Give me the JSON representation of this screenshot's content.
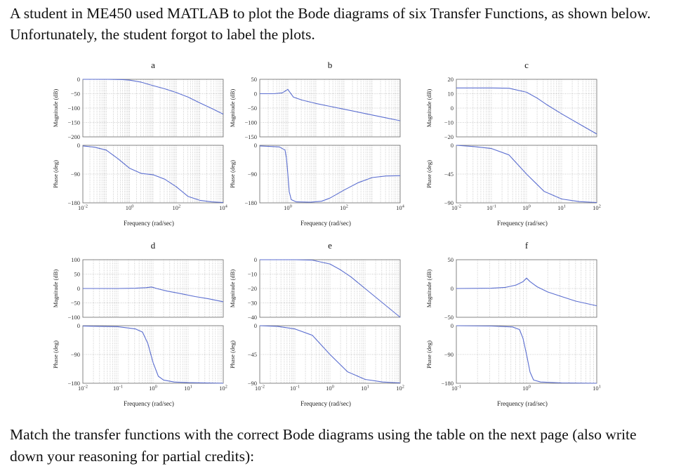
{
  "problem": {
    "intro": "A student in ME450 used MATLAB to plot the Bode diagrams of six Transfer Functions, as shown below. Unfortunately, the student forgot to label the plots.",
    "outro": "Match the transfer functions with the correct Bode diagrams using the table on the next page (also write down your reasoning for partial credits):"
  },
  "style": {
    "curve_color": "#5b6ed0",
    "grid_color": "#9a9a9a",
    "frame_color": "#666666"
  },
  "chart_data": [
    {
      "type": "line",
      "title": "a",
      "xlabel": "Frequency  (rad/sec)",
      "xticks": [
        "10^-2",
        "10^0",
        "10^2",
        "10^4"
      ],
      "xlim_log10": [
        -2,
        4
      ],
      "magnitude": {
        "ylabel": "Magnitude (dB)",
        "ylim": [
          -200,
          0
        ],
        "yticks": [
          0,
          -50,
          -100,
          -150,
          -200
        ],
        "points": [
          [
            -2,
            0
          ],
          [
            -1,
            0
          ],
          [
            -0.3,
            -1
          ],
          [
            0,
            -3
          ],
          [
            0.5,
            -10
          ],
          [
            1,
            -22
          ],
          [
            1.5,
            -33
          ],
          [
            2,
            -46
          ],
          [
            2.5,
            -62
          ],
          [
            3,
            -82
          ],
          [
            3.5,
            -101
          ],
          [
            4,
            -121
          ]
        ]
      },
      "phase": {
        "ylabel": "Phase (deg)",
        "ylim": [
          -180,
          0
        ],
        "yticks": [
          0,
          -90,
          -180
        ],
        "points": [
          [
            -2,
            -2
          ],
          [
            -1.5,
            -6
          ],
          [
            -1,
            -15
          ],
          [
            -0.5,
            -42
          ],
          [
            -0.2,
            -60
          ],
          [
            0,
            -72
          ],
          [
            0.5,
            -88
          ],
          [
            1,
            -92
          ],
          [
            1.5,
            -106
          ],
          [
            2,
            -130
          ],
          [
            2.5,
            -160
          ],
          [
            3,
            -172
          ],
          [
            3.5,
            -177
          ],
          [
            4,
            -179
          ]
        ]
      }
    },
    {
      "type": "line",
      "title": "b",
      "xlabel": "Frequency  (rad/sec)",
      "xticks": [
        "10^0",
        "10^2",
        "10^4"
      ],
      "xlim_log10": [
        -1,
        4
      ],
      "magnitude": {
        "ylabel": "Magnitude (dB)",
        "ylim": [
          -150,
          50
        ],
        "yticks": [
          50,
          0,
          -50,
          -100,
          -150
        ],
        "points": [
          [
            -1,
            0
          ],
          [
            -0.5,
            0
          ],
          [
            -0.2,
            3
          ],
          [
            -0.05,
            12
          ],
          [
            0,
            15
          ],
          [
            0.05,
            8
          ],
          [
            0.2,
            -12
          ],
          [
            0.5,
            -22
          ],
          [
            1,
            -34
          ],
          [
            1.5,
            -44
          ],
          [
            2,
            -54
          ],
          [
            2.5,
            -64
          ],
          [
            3,
            -74
          ],
          [
            3.5,
            -84
          ],
          [
            4,
            -94
          ]
        ]
      },
      "phase": {
        "ylabel": "Phase (deg)",
        "ylim": [
          -180,
          0
        ],
        "yticks": [
          0,
          -90,
          -180
        ],
        "points": [
          [
            -1,
            -2
          ],
          [
            -0.3,
            -5
          ],
          [
            -0.1,
            -15
          ],
          [
            -0.05,
            -40
          ],
          [
            0,
            -90
          ],
          [
            0.05,
            -145
          ],
          [
            0.12,
            -170
          ],
          [
            0.3,
            -177
          ],
          [
            0.8,
            -178
          ],
          [
            1.2,
            -175
          ],
          [
            1.5,
            -165
          ],
          [
            2,
            -140
          ],
          [
            2.5,
            -117
          ],
          [
            3,
            -101
          ],
          [
            3.5,
            -96
          ],
          [
            4,
            -95
          ]
        ]
      }
    },
    {
      "type": "line",
      "title": "c",
      "xlabel": "Frequency  (rad/sec)",
      "xticks": [
        "10^-2",
        "10^-1",
        "10^0",
        "10^1",
        "10^2"
      ],
      "xlim_log10": [
        -2,
        2
      ],
      "magnitude": {
        "ylabel": "Magnitude (dB)",
        "ylim": [
          -20,
          20
        ],
        "yticks": [
          20,
          10,
          0,
          -10,
          -20
        ],
        "points": [
          [
            -2,
            14
          ],
          [
            -1,
            14
          ],
          [
            -0.5,
            13.8
          ],
          [
            0,
            11
          ],
          [
            0.3,
            7
          ],
          [
            0.6,
            2
          ],
          [
            1,
            -4
          ],
          [
            1.5,
            -11
          ],
          [
            2,
            -18
          ]
        ]
      },
      "phase": {
        "ylabel": "Phase (deg)",
        "ylim": [
          -90,
          0
        ],
        "yticks": [
          0,
          -45,
          -90
        ],
        "points": [
          [
            -2,
            0
          ],
          [
            -1.5,
            -2
          ],
          [
            -1,
            -5
          ],
          [
            -0.5,
            -15
          ],
          [
            0,
            -45
          ],
          [
            0.5,
            -72
          ],
          [
            1,
            -84
          ],
          [
            1.5,
            -88
          ],
          [
            2,
            -89.5
          ]
        ]
      }
    },
    {
      "type": "line",
      "title": "d",
      "xlabel": "Frequency  (rad/sec)",
      "xticks": [
        "10^-2",
        "10^-1",
        "10^0",
        "10^1",
        "10^2"
      ],
      "xlim_log10": [
        -2,
        2
      ],
      "magnitude": {
        "ylabel": "Magnitude (dB)",
        "ylim": [
          -100,
          100
        ],
        "yticks": [
          100,
          50,
          0,
          -50,
          -100
        ],
        "points": [
          [
            -2,
            0
          ],
          [
            -1,
            0
          ],
          [
            -0.5,
            1
          ],
          [
            -0.2,
            3
          ],
          [
            -0.05,
            5
          ],
          [
            0,
            4
          ],
          [
            0.1,
            0
          ],
          [
            0.4,
            -9
          ],
          [
            0.8,
            -18
          ],
          [
            1.2,
            -28
          ],
          [
            1.6,
            -36
          ],
          [
            2,
            -46
          ]
        ]
      },
      "phase": {
        "ylabel": "Phase (deg)",
        "ylim": [
          -180,
          0
        ],
        "yticks": [
          0,
          -90,
          -180
        ],
        "points": [
          [
            -2,
            -1
          ],
          [
            -1,
            -3
          ],
          [
            -0.5,
            -10
          ],
          [
            -0.3,
            -20
          ],
          [
            -0.15,
            -55
          ],
          [
            0,
            -115
          ],
          [
            0.15,
            -158
          ],
          [
            0.3,
            -170
          ],
          [
            0.6,
            -176
          ],
          [
            1,
            -178
          ],
          [
            2,
            -180
          ]
        ]
      }
    },
    {
      "type": "line",
      "title": "e",
      "xlabel": "Frequency  (rad/sec)",
      "xticks": [
        "10^-2",
        "10^-1",
        "10^0",
        "10^1",
        "10^2"
      ],
      "xlim_log10": [
        -2,
        2
      ],
      "magnitude": {
        "ylabel": "Magnitude (dB)",
        "ylim": [
          -40,
          0
        ],
        "yticks": [
          0,
          -10,
          -20,
          -30,
          -40
        ],
        "points": [
          [
            -2,
            0
          ],
          [
            -1,
            0
          ],
          [
            -0.5,
            -0.3
          ],
          [
            0,
            -3
          ],
          [
            0.3,
            -7
          ],
          [
            0.6,
            -12
          ],
          [
            1,
            -20
          ],
          [
            1.5,
            -30
          ],
          [
            2,
            -40
          ]
        ]
      },
      "phase": {
        "ylabel": "Phase (deg)",
        "ylim": [
          -90,
          0
        ],
        "yticks": [
          0,
          -45,
          -90
        ],
        "points": [
          [
            -2,
            0
          ],
          [
            -1.5,
            -1
          ],
          [
            -1,
            -5
          ],
          [
            -0.5,
            -15
          ],
          [
            0,
            -45
          ],
          [
            0.5,
            -72
          ],
          [
            1,
            -84
          ],
          [
            1.5,
            -88
          ],
          [
            2,
            -89.5
          ]
        ]
      }
    },
    {
      "type": "line",
      "title": "f",
      "xlabel": "Frequency  (rad/sec)",
      "xticks": [
        "10^-1",
        "10^0",
        "10^1"
      ],
      "xlim_log10": [
        -1,
        1
      ],
      "magnitude": {
        "ylabel": "Magnitude (dB)",
        "ylim": [
          -50,
          50
        ],
        "yticks": [
          50,
          0,
          -50
        ],
        "points": [
          [
            -1,
            0
          ],
          [
            -0.5,
            0.5
          ],
          [
            -0.3,
            2
          ],
          [
            -0.15,
            6
          ],
          [
            -0.05,
            12
          ],
          [
            0,
            18
          ],
          [
            0.05,
            12
          ],
          [
            0.15,
            3
          ],
          [
            0.3,
            -6
          ],
          [
            0.5,
            -14
          ],
          [
            0.7,
            -22
          ],
          [
            1,
            -30
          ]
        ]
      },
      "phase": {
        "ylabel": "Phase (deg)",
        "ylim": [
          -180,
          0
        ],
        "yticks": [
          0,
          -90,
          -180
        ],
        "points": [
          [
            -1,
            0
          ],
          [
            -0.5,
            -1
          ],
          [
            -0.2,
            -4
          ],
          [
            -0.1,
            -12
          ],
          [
            -0.05,
            -40
          ],
          [
            0,
            -90
          ],
          [
            0.05,
            -145
          ],
          [
            0.1,
            -170
          ],
          [
            0.2,
            -176
          ],
          [
            0.5,
            -179
          ],
          [
            1,
            -180
          ]
        ]
      }
    }
  ]
}
